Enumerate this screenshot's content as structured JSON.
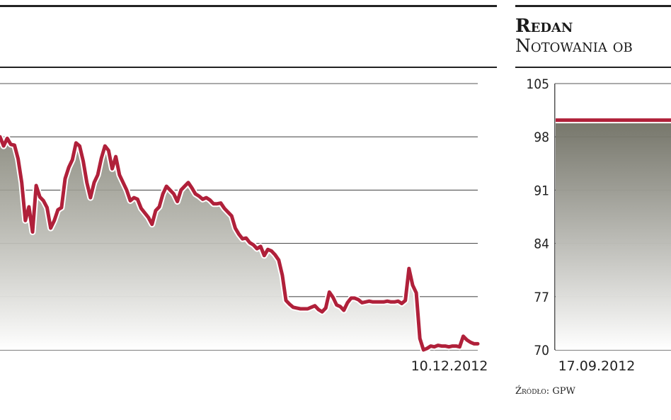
{
  "colors": {
    "line": "#b0203a",
    "line_halo": "#ffffff",
    "grid": "#555555",
    "rule": "#222222",
    "fill_top": "#7f7f72",
    "fill_bottom": "#ffffff"
  },
  "chart_data": [
    {
      "type": "area",
      "title": "",
      "ylim": [
        70,
        105
      ],
      "y_gridlines": [
        70,
        77,
        84,
        91,
        98,
        105
      ],
      "x_end_label": "10.12.2012",
      "series": [
        {
          "values": [
            98.0,
            96.8,
            97.8,
            97.0,
            96.9,
            95.1,
            92.0,
            87.0,
            88.8,
            85.5,
            91.6,
            90.1,
            89.6,
            88.7,
            86.0,
            87.0,
            88.4,
            88.7,
            92.5,
            94.0,
            95.0,
            97.2,
            96.8,
            94.8,
            92.0,
            90.0,
            92.0,
            93.0,
            95.2,
            96.8,
            96.2,
            93.8,
            95.4,
            93.0,
            92.0,
            91.0,
            89.6,
            90.0,
            89.8,
            88.6,
            88.0,
            87.4,
            86.5,
            88.3,
            88.8,
            90.5,
            91.5,
            91.0,
            90.5,
            89.5,
            91.0,
            91.5,
            92.0,
            91.3,
            90.5,
            90.2,
            89.8,
            90.0,
            89.7,
            89.2,
            89.2,
            89.3,
            88.6,
            88.1,
            87.6,
            86.0,
            85.2,
            84.6,
            84.7,
            84.1,
            83.8,
            83.3,
            83.6,
            82.4,
            83.2,
            83.0,
            82.5,
            81.8,
            79.8,
            76.5,
            76.0,
            75.6,
            75.5,
            75.4,
            75.4,
            75.4,
            75.6,
            75.8,
            75.3,
            75.0,
            75.5,
            77.6,
            76.9,
            75.9,
            75.7,
            75.2,
            76.2,
            76.8,
            76.8,
            76.6,
            76.2,
            76.3,
            76.4,
            76.3,
            76.3,
            76.3,
            76.3,
            76.4,
            76.3,
            76.3,
            76.4,
            76.1,
            76.5,
            80.7,
            78.5,
            77.5,
            71.5,
            70.0,
            70.2,
            70.5,
            70.4,
            70.6,
            70.5,
            70.5,
            70.4,
            70.5,
            70.5,
            70.4,
            71.8,
            71.3,
            71.0,
            70.8,
            70.8
          ]
        }
      ]
    },
    {
      "type": "area",
      "title": "Redan",
      "subtitle": "Notowania ob",
      "ylim": [
        70,
        105
      ],
      "y_ticks": [
        "105",
        "98",
        "91",
        "84",
        "77",
        "70"
      ],
      "y_tick_values": [
        105,
        98,
        91,
        84,
        77,
        70
      ],
      "x_start_label": "17.09.2012",
      "source": "Źródło: GPW",
      "series": [
        {
          "values": [
            100.2,
            100.2
          ]
        }
      ]
    }
  ]
}
